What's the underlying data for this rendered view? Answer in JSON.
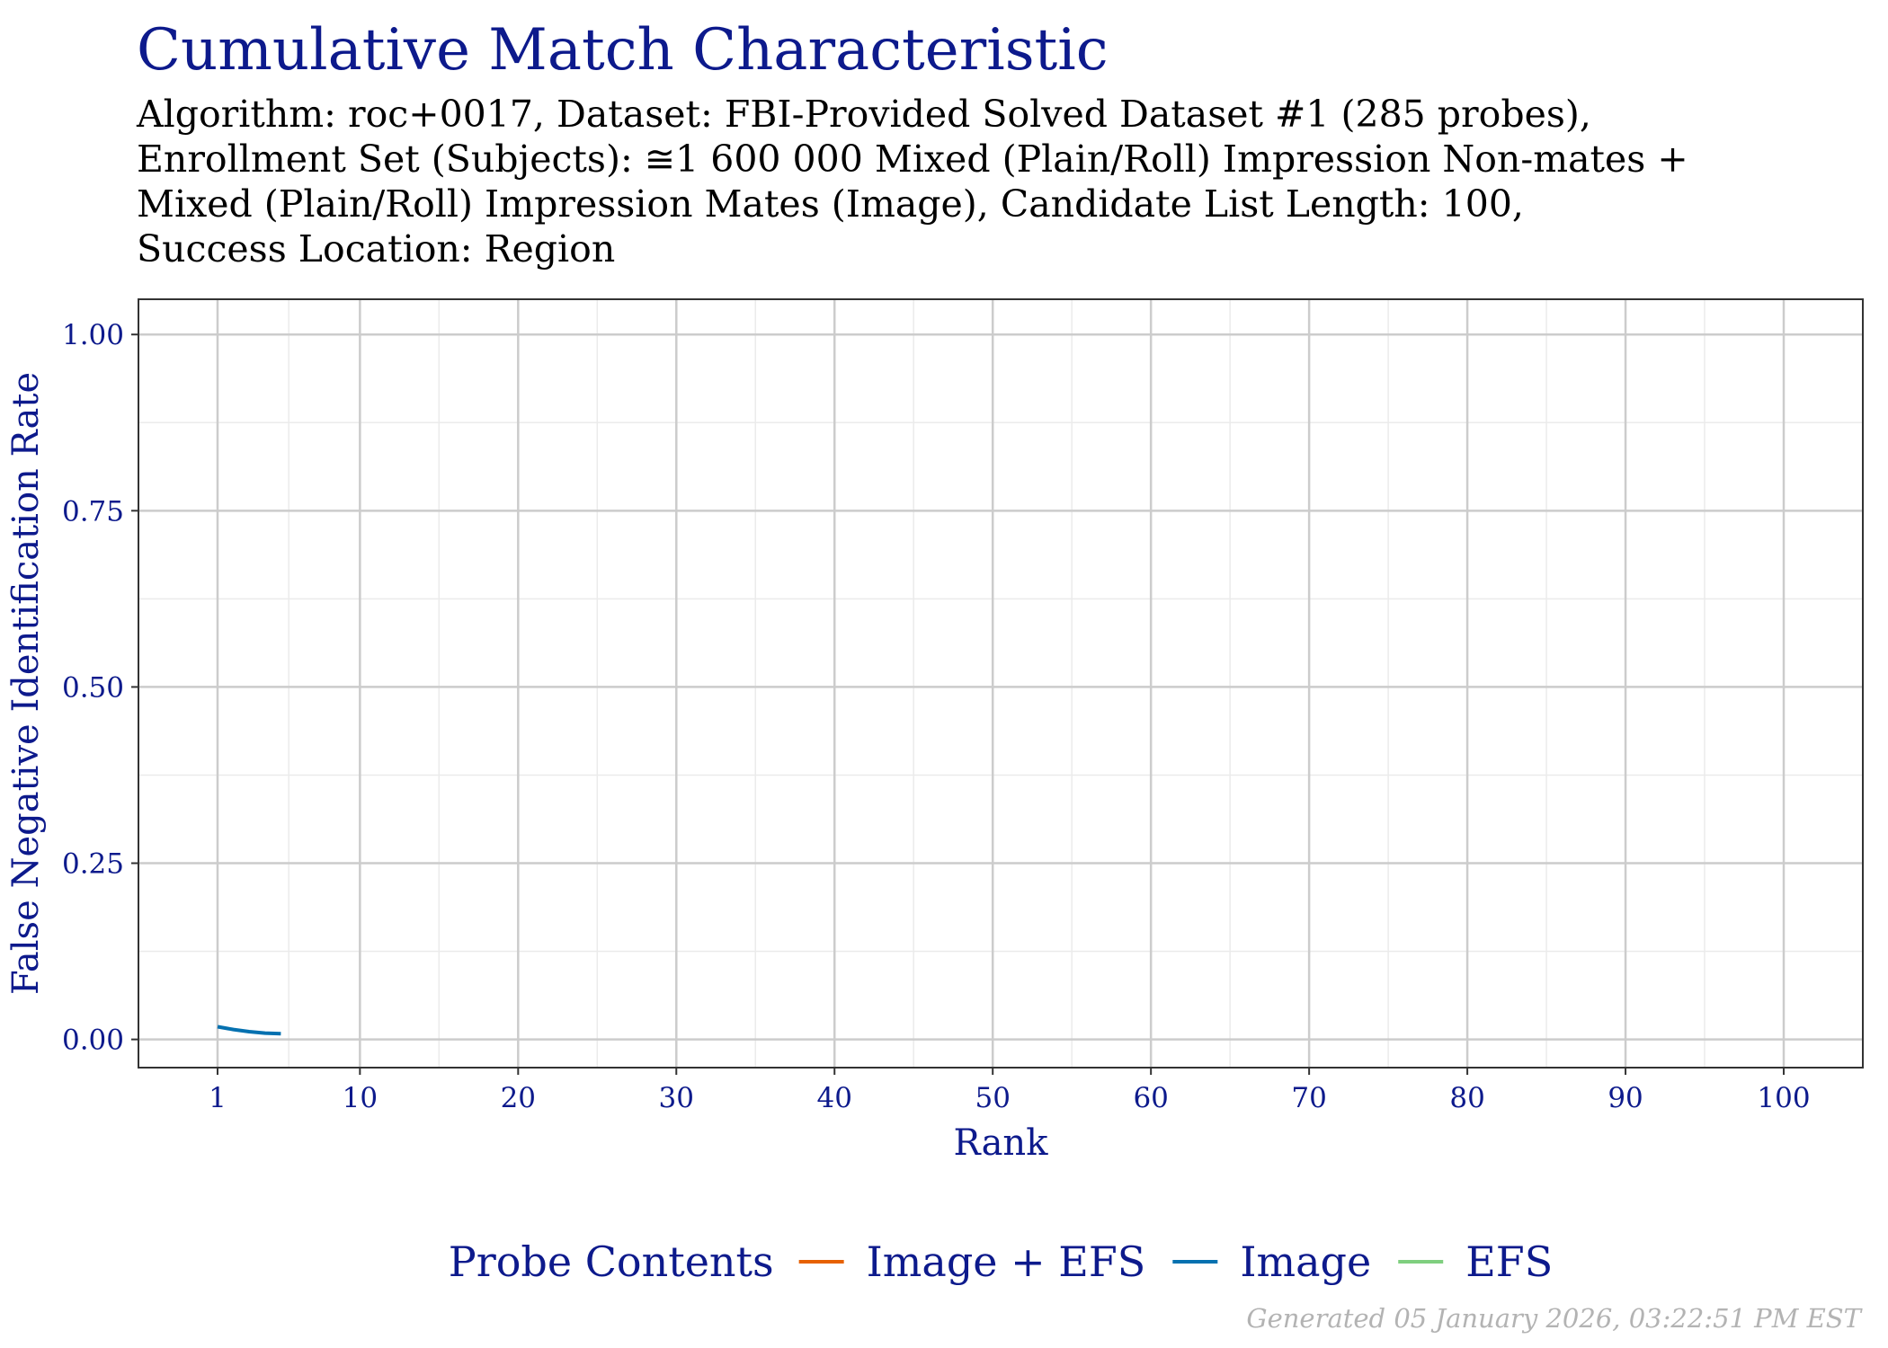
{
  "chart_data": {
    "type": "line",
    "title": "Cumulative Match Characteristic",
    "subtitle_lines": [
      "Algorithm: roc+0017, Dataset: FBI-Provided Solved Dataset #1 (285 probes),",
      "Enrollment Set (Subjects): ≅1 600 000 Mixed (Plain/Roll) Impression Non-mates +",
      "Mixed (Plain/Roll) Impression Mates (Image), Candidate List Length: 100,",
      "Success Location: Region"
    ],
    "xlabel": "Rank",
    "ylabel": "False Negative Identification Rate",
    "xlim": [
      -4,
      105
    ],
    "ylim": [
      -0.04,
      1.05
    ],
    "x_ticks": [
      1,
      10,
      20,
      30,
      40,
      50,
      60,
      70,
      80,
      90,
      100
    ],
    "x_tick_labels": [
      "1",
      "10",
      "20",
      "30",
      "40",
      "50",
      "60",
      "70",
      "80",
      "90",
      "100"
    ],
    "y_ticks": [
      0,
      0.25,
      0.5,
      0.75,
      1.0
    ],
    "y_tick_labels": [
      "0.00",
      "0.25",
      "0.50",
      "0.75",
      "1.00"
    ],
    "grid": true,
    "legend_title": "Probe Contents",
    "legend_position": "bottom",
    "series": [
      {
        "name": "Image + EFS",
        "color": "#e66101",
        "x": [],
        "y": []
      },
      {
        "name": "Image",
        "color": "#0571b0",
        "x": [
          1,
          2,
          3,
          4,
          5
        ],
        "y": [
          0.018,
          0.014,
          0.011,
          0.009,
          0.008
        ]
      },
      {
        "name": "EFS",
        "color": "#7fcf7f",
        "x": [],
        "y": []
      }
    ],
    "colors": {
      "title": "#0d1a8c",
      "axis_text": "#0d1a8c",
      "grid_major": "#cccccc",
      "grid_minor": "#ebebeb"
    }
  },
  "footer": "Generated 05 January 2026, 03:22:51 PM EST"
}
